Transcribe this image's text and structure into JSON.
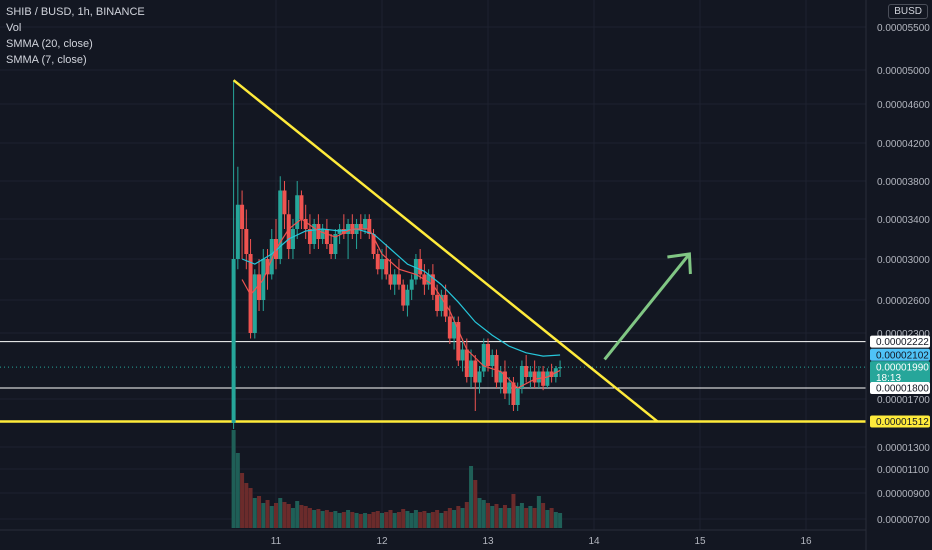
{
  "header": {
    "symbol_line": "SHIB / BUSD, 1h, BINANCE",
    "vol_label": "Vol",
    "smma20_label": "SMMA (20, close)",
    "smma7_label": "SMMA (7, close)"
  },
  "currency_badge": "BUSD",
  "colors": {
    "background": "#131722",
    "up": "#26a69a",
    "down": "#ef5350",
    "trendline": "#ffeb3b",
    "smma20": "#26c6da",
    "smma7": "#ef5350",
    "arrow": "#81c784",
    "hline": "#ffffff"
  },
  "chart_data": {
    "type": "candlestick",
    "symbol": "SHIB / BUSD",
    "timeframe": "1h",
    "exchange": "BINANCE",
    "x_axis_ticks": [
      "11",
      "12",
      "13",
      "14",
      "15",
      "16"
    ],
    "y_axis_ticks": [
      "0.00005500",
      "0.00005000",
      "0.00004600",
      "0.00004200",
      "0.00003800",
      "0.00003400",
      "0.00003000",
      "0.00002600",
      "0.00002300",
      "0.00001700",
      "0.00001300",
      "0.00001100",
      "0.00000900",
      "0.00000700"
    ],
    "price_labels": [
      {
        "value": "0.00002222",
        "style": "white"
      },
      {
        "value": "0.00002102",
        "style": "cyan"
      },
      {
        "value": "0.00001990",
        "style": "teal",
        "sub": "18:13"
      },
      {
        "value": "0.00001800",
        "style": "white"
      },
      {
        "value": "0.00001512",
        "style": "yellow"
      }
    ],
    "horizontal_lines": [
      2.222e-05,
      1.8e-05,
      1.512e-05
    ],
    "descending_trendline": {
      "start": {
        "day": 10.6,
        "price": 4.88e-05
      },
      "end": {
        "day": 14.6,
        "price": 1.512e-05
      }
    },
    "projection_arrow": {
      "start": {
        "day": 14.1,
        "price": 2.06e-05
      },
      "end": {
        "day": 14.9,
        "price": 3.05e-05
      }
    },
    "candles": [
      [
        10.6,
        1.5e-05,
        4.88e-05,
        1.45e-05,
        3e-05,
        "up",
        0.98
      ],
      [
        10.64,
        3e-05,
        3.95e-05,
        2.9e-05,
        3.55e-05,
        "up",
        0.75
      ],
      [
        10.68,
        3.55e-05,
        3.7e-05,
        3e-05,
        3.3e-05,
        "down",
        0.55
      ],
      [
        10.72,
        3.3e-05,
        3.5e-05,
        2.9e-05,
        3.05e-05,
        "down",
        0.45
      ],
      [
        10.76,
        3.05e-05,
        3.2e-05,
        2.25e-05,
        2.3e-05,
        "down",
        0.4
      ],
      [
        10.8,
        2.3e-05,
        2.9e-05,
        2.25e-05,
        2.85e-05,
        "up",
        0.3
      ],
      [
        10.84,
        2.85e-05,
        3e-05,
        2.5e-05,
        2.6e-05,
        "down",
        0.32
      ],
      [
        10.88,
        2.6e-05,
        3.1e-05,
        2.5e-05,
        3e-05,
        "up",
        0.25
      ],
      [
        10.92,
        3e-05,
        3.1e-05,
        2.7e-05,
        2.85e-05,
        "down",
        0.28
      ],
      [
        10.96,
        2.85e-05,
        3.3e-05,
        2.8e-05,
        3.2e-05,
        "up",
        0.22
      ],
      [
        11.0,
        3.2e-05,
        3.4e-05,
        2.9e-05,
        3e-05,
        "down",
        0.25
      ],
      [
        11.04,
        3e-05,
        3.85e-05,
        2.95e-05,
        3.7e-05,
        "up",
        0.3
      ],
      [
        11.08,
        3.7e-05,
        3.8e-05,
        3.3e-05,
        3.45e-05,
        "down",
        0.26
      ],
      [
        11.12,
        3.45e-05,
        3.6e-05,
        3e-05,
        3.1e-05,
        "down",
        0.24
      ],
      [
        11.16,
        3.1e-05,
        3.4e-05,
        3e-05,
        3.3e-05,
        "up",
        0.2
      ],
      [
        11.2,
        3.3e-05,
        3.8e-05,
        3.2e-05,
        3.65e-05,
        "up",
        0.27
      ],
      [
        11.24,
        3.65e-05,
        3.7e-05,
        3.3e-05,
        3.4e-05,
        "down",
        0.23
      ],
      [
        11.28,
        3.4e-05,
        3.55e-05,
        3.2e-05,
        3.3e-05,
        "down",
        0.22
      ],
      [
        11.32,
        3.3e-05,
        3.45e-05,
        3.05e-05,
        3.15e-05,
        "down",
        0.2
      ],
      [
        11.36,
        3.15e-05,
        3.4e-05,
        3.1e-05,
        3.35e-05,
        "up",
        0.18
      ],
      [
        11.4,
        3.35e-05,
        3.45e-05,
        3.1e-05,
        3.2e-05,
        "down",
        0.19
      ],
      [
        11.44,
        3.2e-05,
        3.35e-05,
        3.15e-05,
        3.3e-05,
        "up",
        0.17
      ],
      [
        11.48,
        3.3e-05,
        3.4e-05,
        3.1e-05,
        3.15e-05,
        "down",
        0.18
      ],
      [
        11.52,
        3.15e-05,
        3.25e-05,
        3e-05,
        3.05e-05,
        "down",
        0.16
      ],
      [
        11.56,
        3.05e-05,
        3.3e-05,
        3e-05,
        3.25e-05,
        "up",
        0.17
      ],
      [
        11.6,
        3.25e-05,
        3.35e-05,
        3.15e-05,
        3.3e-05,
        "up",
        0.15
      ],
      [
        11.64,
        3.3e-05,
        3.45e-05,
        3.2e-05,
        3.25e-05,
        "down",
        0.16
      ],
      [
        11.68,
        3.25e-05,
        3.4e-05,
        3e-05,
        3.35e-05,
        "up",
        0.18
      ],
      [
        11.72,
        3.35e-05,
        3.45e-05,
        3.2e-05,
        3.25e-05,
        "down",
        0.16
      ],
      [
        11.76,
        3.25e-05,
        3.4e-05,
        3.1e-05,
        3.35e-05,
        "up",
        0.15
      ],
      [
        11.8,
        3.35e-05,
        3.45e-05,
        3.2e-05,
        3.3e-05,
        "down",
        0.14
      ],
      [
        11.84,
        3.3e-05,
        3.45e-05,
        3.25e-05,
        3.4e-05,
        "up",
        0.15
      ],
      [
        11.88,
        3.4e-05,
        3.45e-05,
        3.2e-05,
        3.25e-05,
        "down",
        0.14
      ],
      [
        11.92,
        3.25e-05,
        3.3e-05,
        3e-05,
        3.05e-05,
        "down",
        0.16
      ],
      [
        11.96,
        3.05e-05,
        3.1e-05,
        2.85e-05,
        2.9e-05,
        "down",
        0.17
      ],
      [
        12.0,
        2.9e-05,
        3.1e-05,
        2.8e-05,
        3e-05,
        "up",
        0.15
      ],
      [
        12.04,
        3e-05,
        3.15e-05,
        2.8e-05,
        2.85e-05,
        "down",
        0.16
      ],
      [
        12.08,
        2.85e-05,
        3e-05,
        2.7e-05,
        2.75e-05,
        "down",
        0.18
      ],
      [
        12.12,
        2.75e-05,
        2.9e-05,
        2.65e-05,
        2.85e-05,
        "up",
        0.15
      ],
      [
        12.16,
        2.85e-05,
        3e-05,
        2.7e-05,
        2.75e-05,
        "down",
        0.16
      ],
      [
        12.2,
        2.75e-05,
        2.8e-05,
        2.5e-05,
        2.55e-05,
        "down",
        0.19
      ],
      [
        12.24,
        2.55e-05,
        2.75e-05,
        2.45e-05,
        2.7e-05,
        "up",
        0.17
      ],
      [
        12.28,
        2.7e-05,
        2.85e-05,
        2.6e-05,
        2.8e-05,
        "up",
        0.15
      ],
      [
        12.32,
        2.8e-05,
        3.05e-05,
        2.75e-05,
        3e-05,
        "up",
        0.18
      ],
      [
        12.36,
        3e-05,
        3.1e-05,
        2.8e-05,
        2.85e-05,
        "down",
        0.16
      ],
      [
        12.4,
        2.85e-05,
        2.95e-05,
        2.65e-05,
        2.75e-05,
        "down",
        0.17
      ],
      [
        12.44,
        2.75e-05,
        2.9e-05,
        2.7e-05,
        2.85e-05,
        "up",
        0.15
      ],
      [
        12.48,
        2.85e-05,
        2.95e-05,
        2.6e-05,
        2.65e-05,
        "down",
        0.16
      ],
      [
        12.52,
        2.65e-05,
        2.75e-05,
        2.45e-05,
        2.5e-05,
        "down",
        0.18
      ],
      [
        12.56,
        2.5e-05,
        2.7e-05,
        2.45e-05,
        2.65e-05,
        "up",
        0.15
      ],
      [
        12.6,
        2.65e-05,
        2.75e-05,
        2.4e-05,
        2.45e-05,
        "down",
        0.17
      ],
      [
        12.64,
        2.45e-05,
        2.55e-05,
        2.2e-05,
        2.25e-05,
        "down",
        0.2
      ],
      [
        12.68,
        2.25e-05,
        2.45e-05,
        2.15e-05,
        2.4e-05,
        "up",
        0.18
      ],
      [
        12.72,
        2.4e-05,
        2.45e-05,
        2e-05,
        2.05e-05,
        "down",
        0.22
      ],
      [
        12.76,
        2.05e-05,
        2.25e-05,
        1.95e-05,
        2.15e-05,
        "up",
        0.2
      ],
      [
        12.8,
        2.15e-05,
        2.25e-05,
        1.85e-05,
        1.9e-05,
        "down",
        0.26
      ],
      [
        12.84,
        1.9e-05,
        2.15e-05,
        1.8e-05,
        2.05e-05,
        "up",
        0.62
      ],
      [
        12.88,
        2.05e-05,
        2.1e-05,
        1.6e-05,
        1.85e-05,
        "down",
        0.48
      ],
      [
        12.92,
        1.85e-05,
        2e-05,
        1.75e-05,
        1.95e-05,
        "up",
        0.3
      ],
      [
        12.96,
        1.95e-05,
        2.25e-05,
        1.9e-05,
        2.2e-05,
        "up",
        0.28
      ],
      [
        13.0,
        2.2e-05,
        2.25e-05,
        1.95e-05,
        2e-05,
        "down",
        0.25
      ],
      [
        13.04,
        2e-05,
        2.15e-05,
        1.9e-05,
        2.1e-05,
        "up",
        0.22
      ],
      [
        13.08,
        2.1e-05,
        2.15e-05,
        1.8e-05,
        1.85e-05,
        "down",
        0.24
      ],
      [
        13.12,
        1.85e-05,
        2e-05,
        1.75e-05,
        1.95e-05,
        "up",
        0.2
      ],
      [
        13.16,
        1.95e-05,
        2.05e-05,
        1.7e-05,
        1.75e-05,
        "down",
        0.23
      ],
      [
        13.2,
        1.75e-05,
        1.9e-05,
        1.65e-05,
        1.85e-05,
        "up",
        0.2
      ],
      [
        13.24,
        1.85e-05,
        1.9e-05,
        1.6e-05,
        1.65e-05,
        "down",
        0.34
      ],
      [
        13.28,
        1.65e-05,
        1.85e-05,
        1.6e-05,
        1.8e-05,
        "up",
        0.22
      ],
      [
        13.32,
        1.8e-05,
        2.05e-05,
        1.75e-05,
        2e-05,
        "up",
        0.25
      ],
      [
        13.36,
        2e-05,
        2.1e-05,
        1.85e-05,
        1.9e-05,
        "down",
        0.2
      ],
      [
        13.4,
        1.9e-05,
        2e-05,
        1.8e-05,
        1.95e-05,
        "up",
        0.22
      ],
      [
        13.44,
        1.95e-05,
        2.05e-05,
        1.8e-05,
        1.85e-05,
        "down",
        0.2
      ],
      [
        13.48,
        1.85e-05,
        2e-05,
        1.8e-05,
        1.95e-05,
        "up",
        0.32
      ],
      [
        13.52,
        1.95e-05,
        2e-05,
        1.78e-05,
        1.82e-05,
        "down",
        0.25
      ],
      [
        13.56,
        1.82e-05,
        1.98e-05,
        1.8e-05,
        1.95e-05,
        "up",
        0.18
      ],
      [
        13.6,
        1.95e-05,
        2.02e-05,
        1.85e-05,
        1.9e-05,
        "down",
        0.2
      ],
      [
        13.64,
        1.9e-05,
        2e-05,
        1.85e-05,
        1.98e-05,
        "up",
        0.16
      ],
      [
        13.68,
        1.98e-05,
        2.05e-05,
        1.9e-05,
        1.99e-05,
        "up",
        0.15
      ]
    ],
    "smma20": [
      [
        10.68,
        3e-05
      ],
      [
        10.8,
        2.95e-05
      ],
      [
        10.96,
        3.05e-05
      ],
      [
        11.12,
        3.2e-05
      ],
      [
        11.28,
        3.28e-05
      ],
      [
        11.44,
        3.3e-05
      ],
      [
        11.6,
        3.28e-05
      ],
      [
        11.76,
        3.3e-05
      ],
      [
        11.92,
        3.25e-05
      ],
      [
        12.08,
        3.1e-05
      ],
      [
        12.24,
        2.95e-05
      ],
      [
        12.4,
        2.88e-05
      ],
      [
        12.56,
        2.75e-05
      ],
      [
        12.72,
        2.58e-05
      ],
      [
        12.88,
        2.4e-05
      ],
      [
        13.04,
        2.28e-05
      ],
      [
        13.2,
        2.18e-05
      ],
      [
        13.36,
        2.12e-05
      ],
      [
        13.52,
        2.09e-05
      ],
      [
        13.68,
        2.1e-05
      ]
    ],
    "smma7": [
      [
        10.68,
        2.8e-05
      ],
      [
        10.76,
        2.65e-05
      ],
      [
        10.88,
        2.8e-05
      ],
      [
        11.0,
        3.1e-05
      ],
      [
        11.12,
        3.3e-05
      ],
      [
        11.24,
        3.4e-05
      ],
      [
        11.4,
        3.28e-05
      ],
      [
        11.56,
        3.22e-05
      ],
      [
        11.72,
        3.3e-05
      ],
      [
        11.88,
        3.3e-05
      ],
      [
        12.0,
        3.05e-05
      ],
      [
        12.16,
        2.9e-05
      ],
      [
        12.32,
        2.85e-05
      ],
      [
        12.48,
        2.75e-05
      ],
      [
        12.64,
        2.5e-05
      ],
      [
        12.8,
        2.15e-05
      ],
      [
        12.96,
        2e-05
      ],
      [
        13.12,
        1.95e-05
      ],
      [
        13.28,
        1.8e-05
      ],
      [
        13.44,
        1.88e-05
      ],
      [
        13.56,
        1.9e-05
      ],
      [
        13.68,
        1.96e-05
      ]
    ]
  }
}
